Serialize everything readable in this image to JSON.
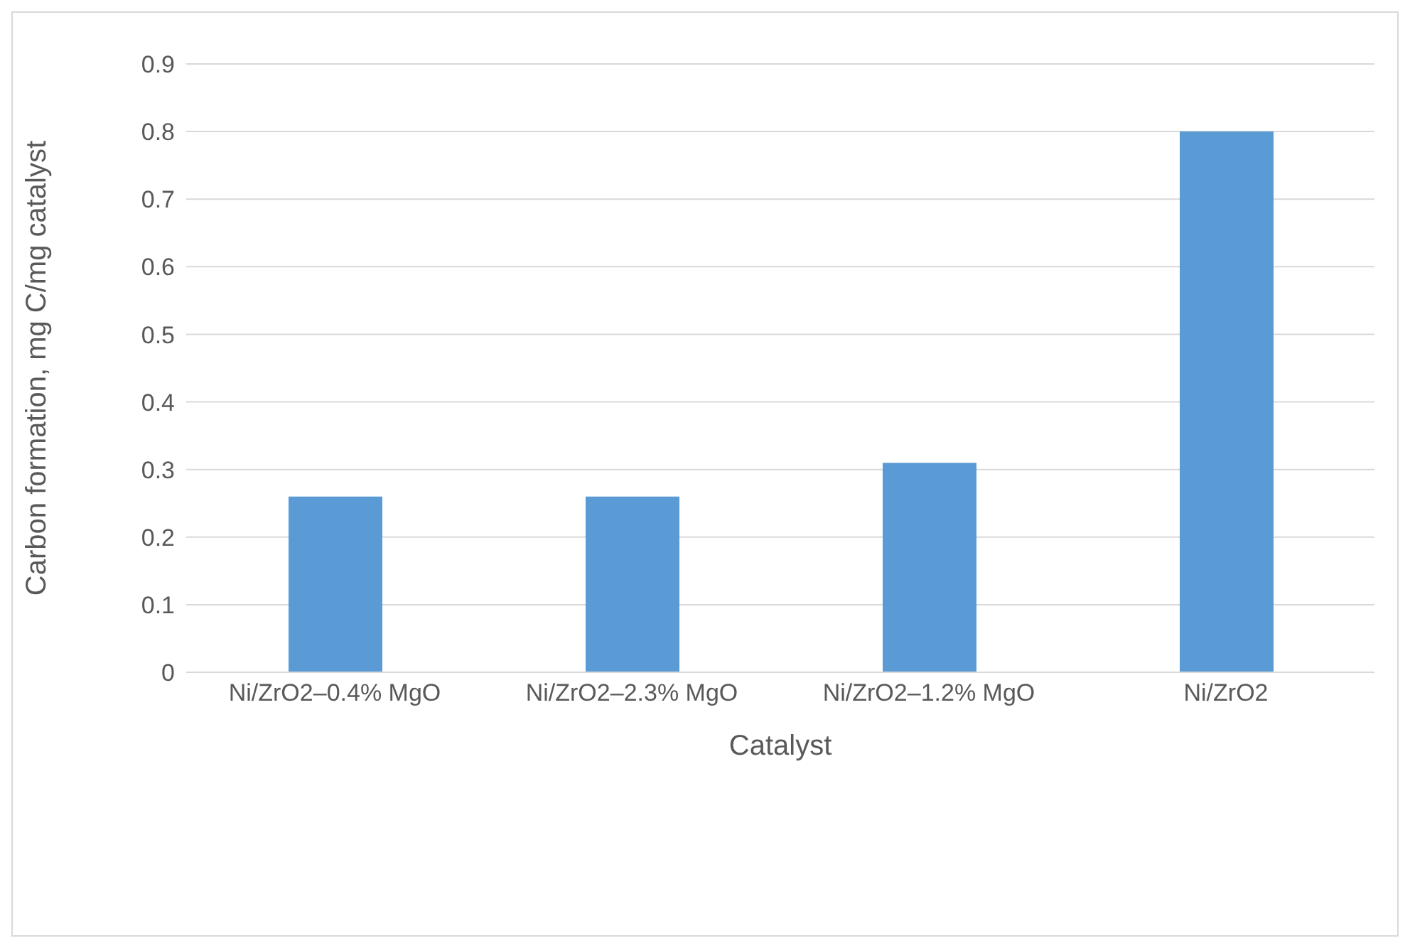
{
  "chart_data": {
    "type": "bar",
    "xlabel": "Catalyst",
    "ylabel": "Carbon formation, mg C/mg catalyst",
    "categories": [
      "Ni/ZrO2–0.4% MgO",
      "Ni/ZrO2–2.3% MgO",
      "Ni/ZrO2–1.2% MgO",
      "Ni/ZrO2"
    ],
    "values": [
      0.26,
      0.26,
      0.31,
      0.8
    ],
    "color": "#5b9bd5",
    "ylim": [
      0,
      0.9
    ],
    "yticks": [
      0,
      0.1,
      0.2,
      0.3,
      0.4,
      0.5,
      0.6,
      0.7,
      0.8,
      0.9
    ],
    "grid": "y",
    "legend": false
  }
}
